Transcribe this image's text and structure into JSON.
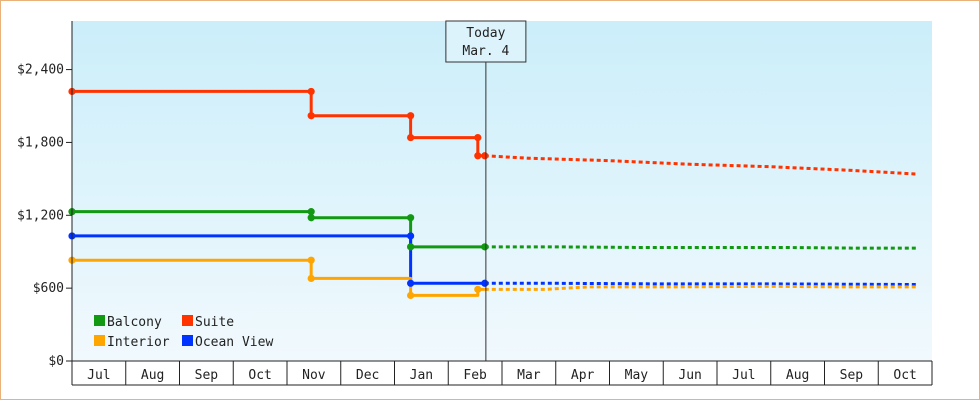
{
  "chart_data": {
    "type": "line",
    "title": "",
    "xlabel": "",
    "ylabel": "",
    "ylim": [
      0,
      2800
    ],
    "y_ticks": [
      0,
      600,
      1200,
      1800,
      2400
    ],
    "y_tick_labels": [
      "$0",
      "$600",
      "$1,200",
      "$1,800",
      "$2,400"
    ],
    "x_months": [
      "Jul",
      "Aug",
      "Sep",
      "Oct",
      "Nov",
      "Dec",
      "Jan",
      "Feb",
      "Mar",
      "Apr",
      "May",
      "Jun",
      "Jul",
      "Aug",
      "Sep",
      "Oct"
    ],
    "today": {
      "line1": "Today",
      "line2": "Mar. 4",
      "month_pos": 7.7
    },
    "grid": false,
    "legend_position": "bottom-left",
    "series": [
      {
        "name": "Suite",
        "color": "#ff3300",
        "history": [
          [
            0,
            2220
          ],
          [
            4.45,
            2220
          ],
          [
            4.45,
            2020
          ],
          [
            6.3,
            2020
          ],
          [
            6.3,
            1840
          ],
          [
            7.55,
            1840
          ],
          [
            7.55,
            1690
          ],
          [
            7.68,
            1690
          ]
        ],
        "forecast": [
          [
            7.68,
            1690
          ],
          [
            8.5,
            1670
          ],
          [
            10,
            1650
          ],
          [
            11.5,
            1620
          ],
          [
            13,
            1600
          ],
          [
            14.5,
            1570
          ],
          [
            15.7,
            1540
          ]
        ]
      },
      {
        "name": "Balcony",
        "color": "#119911",
        "history": [
          [
            0,
            1230
          ],
          [
            4.45,
            1230
          ],
          [
            4.45,
            1180
          ],
          [
            6.3,
            1180
          ],
          [
            6.3,
            940
          ],
          [
            7.68,
            940
          ]
        ],
        "forecast": [
          [
            7.68,
            940
          ],
          [
            9,
            940
          ],
          [
            10.5,
            935
          ],
          [
            12,
            935
          ],
          [
            13.2,
            935
          ],
          [
            14.5,
            930
          ],
          [
            15.7,
            930
          ]
        ]
      },
      {
        "name": "Ocean View",
        "color": "#0033ff",
        "history": [
          [
            0,
            1030
          ],
          [
            6.3,
            1030
          ],
          [
            6.3,
            640
          ],
          [
            7.68,
            640
          ]
        ],
        "forecast": [
          [
            7.68,
            640
          ],
          [
            9,
            640
          ],
          [
            11,
            635
          ],
          [
            13,
            635
          ],
          [
            15.7,
            630
          ]
        ]
      },
      {
        "name": "Interior",
        "color": "#ffa500",
        "history": [
          [
            0,
            830
          ],
          [
            4.45,
            830
          ],
          [
            4.45,
            680
          ],
          [
            6.3,
            680
          ],
          [
            6.3,
            540
          ],
          [
            7.55,
            540
          ],
          [
            7.55,
            590
          ],
          [
            7.68,
            590
          ]
        ],
        "forecast": [
          [
            7.68,
            590
          ],
          [
            8.8,
            590
          ],
          [
            9.6,
            610
          ],
          [
            11,
            610
          ],
          [
            13,
            615
          ],
          [
            14.5,
            610
          ],
          [
            15.7,
            610
          ]
        ]
      }
    ],
    "markers": {
      "Suite": [
        [
          0,
          2220
        ],
        [
          4.45,
          2220
        ],
        [
          4.45,
          2020
        ],
        [
          6.3,
          2020
        ],
        [
          6.3,
          1840
        ],
        [
          7.55,
          1840
        ],
        [
          7.55,
          1690
        ],
        [
          7.68,
          1690
        ]
      ],
      "Balcony": [
        [
          0,
          1230
        ],
        [
          4.45,
          1230
        ],
        [
          4.45,
          1180
        ],
        [
          6.3,
          1180
        ],
        [
          6.3,
          940
        ],
        [
          7.68,
          940
        ]
      ],
      "Ocean View": [
        [
          0,
          1030
        ],
        [
          6.3,
          1030
        ],
        [
          6.3,
          640
        ],
        [
          7.68,
          640
        ]
      ],
      "Interior": [
        [
          0,
          830
        ],
        [
          4.45,
          830
        ],
        [
          4.45,
          680
        ],
        [
          6.3,
          540
        ],
        [
          7.55,
          590
        ]
      ]
    },
    "legend": [
      {
        "name": "Balcony",
        "color": "#119911"
      },
      {
        "name": "Suite",
        "color": "#ff3300"
      },
      {
        "name": "Interior",
        "color": "#ffa500"
      },
      {
        "name": "Ocean View",
        "color": "#0033ff"
      }
    ]
  }
}
